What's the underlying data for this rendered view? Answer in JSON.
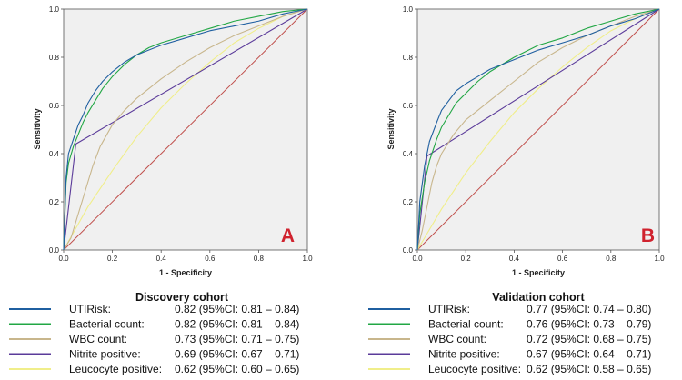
{
  "chart_data": [
    {
      "type": "line",
      "panel": "A",
      "title": "Discovery cohort",
      "xlabel": "1 - Specificity",
      "ylabel": "Sensitivity",
      "xlim": [
        0.0,
        1.0
      ],
      "ylim": [
        0.0,
        1.0
      ],
      "xticks": [
        "0.0",
        "0.2",
        "0.4",
        "0.6",
        "0.8",
        "1.0"
      ],
      "yticks": [
        "0.0",
        "0.2",
        "0.4",
        "0.6",
        "0.8",
        "1.0"
      ],
      "reference_line": {
        "name": "Reference line",
        "color": "#c0504d",
        "points": [
          [
            0,
            0
          ],
          [
            1,
            1
          ]
        ]
      },
      "series": [
        {
          "name": "UTIRisk:",
          "auc": "0.82 (95%CI: 0.81 – 0.84)",
          "color": "#1f5fa0",
          "points": [
            [
              0,
              0
            ],
            [
              0.01,
              0.3
            ],
            [
              0.02,
              0.4
            ],
            [
              0.04,
              0.46
            ],
            [
              0.06,
              0.52
            ],
            [
              0.08,
              0.56
            ],
            [
              0.1,
              0.61
            ],
            [
              0.13,
              0.66
            ],
            [
              0.16,
              0.7
            ],
            [
              0.2,
              0.74
            ],
            [
              0.25,
              0.78
            ],
            [
              0.3,
              0.81
            ],
            [
              0.35,
              0.83
            ],
            [
              0.4,
              0.85
            ],
            [
              0.5,
              0.88
            ],
            [
              0.6,
              0.91
            ],
            [
              0.7,
              0.93
            ],
            [
              0.8,
              0.95
            ],
            [
              0.9,
              0.98
            ],
            [
              1,
              1
            ]
          ]
        },
        {
          "name": "Bacterial count:",
          "auc": "0.82 (95%CI: 0.81 – 0.84)",
          "color": "#22a745",
          "points": [
            [
              0,
              0
            ],
            [
              0.01,
              0.28
            ],
            [
              0.02,
              0.36
            ],
            [
              0.04,
              0.43
            ],
            [
              0.06,
              0.48
            ],
            [
              0.08,
              0.53
            ],
            [
              0.1,
              0.57
            ],
            [
              0.13,
              0.62
            ],
            [
              0.16,
              0.67
            ],
            [
              0.2,
              0.72
            ],
            [
              0.25,
              0.77
            ],
            [
              0.3,
              0.81
            ],
            [
              0.35,
              0.84
            ],
            [
              0.4,
              0.86
            ],
            [
              0.5,
              0.89
            ],
            [
              0.6,
              0.92
            ],
            [
              0.7,
              0.95
            ],
            [
              0.8,
              0.97
            ],
            [
              0.9,
              0.99
            ],
            [
              1,
              1
            ]
          ]
        },
        {
          "name": "WBC count:",
          "auc": "0.73 (95%CI: 0.71 – 0.75)",
          "color": "#c8b68c",
          "points": [
            [
              0,
              0
            ],
            [
              0.03,
              0.05
            ],
            [
              0.06,
              0.15
            ],
            [
              0.09,
              0.25
            ],
            [
              0.12,
              0.35
            ],
            [
              0.15,
              0.43
            ],
            [
              0.2,
              0.52
            ],
            [
              0.25,
              0.58
            ],
            [
              0.3,
              0.63
            ],
            [
              0.4,
              0.71
            ],
            [
              0.5,
              0.78
            ],
            [
              0.6,
              0.84
            ],
            [
              0.7,
              0.89
            ],
            [
              0.8,
              0.93
            ],
            [
              0.9,
              0.97
            ],
            [
              1,
              1
            ]
          ]
        },
        {
          "name": "Nitrite positive:",
          "auc": "0.69 (95%CI: 0.67 – 0.71)",
          "color": "#5b3b9a",
          "points": [
            [
              0,
              0
            ],
            [
              0.05,
              0.44
            ],
            [
              1,
              1
            ]
          ]
        },
        {
          "name": "Leucocyte positive:",
          "auc": "0.62 (95%CI: 0.60 – 0.65)",
          "color": "#f0ee8a",
          "points": [
            [
              0,
              0
            ],
            [
              0.1,
              0.18
            ],
            [
              0.2,
              0.33
            ],
            [
              0.3,
              0.47
            ],
            [
              0.4,
              0.59
            ],
            [
              0.5,
              0.69
            ],
            [
              0.6,
              0.78
            ],
            [
              0.7,
              0.86
            ],
            [
              0.8,
              0.92
            ],
            [
              0.9,
              0.97
            ],
            [
              1,
              1
            ]
          ]
        }
      ]
    },
    {
      "type": "line",
      "panel": "B",
      "title": "Validation cohort",
      "xlabel": "1 - Specificity",
      "ylabel": "Sensitivity",
      "xlim": [
        0.0,
        1.0
      ],
      "ylim": [
        0.0,
        1.0
      ],
      "xticks": [
        "0.0",
        "0.2",
        "0.4",
        "0.6",
        "0.8",
        "1.0"
      ],
      "yticks": [
        "0.0",
        "0.2",
        "0.4",
        "0.6",
        "0.8",
        "1.0"
      ],
      "reference_line": {
        "name": "Reference line",
        "color": "#c0504d",
        "points": [
          [
            0,
            0
          ],
          [
            1,
            1
          ]
        ]
      },
      "series": [
        {
          "name": "UTIRisk:",
          "auc": "0.77 (95%CI: 0.74 – 0.80)",
          "color": "#1f5fa0",
          "points": [
            [
              0,
              0
            ],
            [
              0.01,
              0.2
            ],
            [
              0.03,
              0.35
            ],
            [
              0.05,
              0.45
            ],
            [
              0.08,
              0.53
            ],
            [
              0.1,
              0.58
            ],
            [
              0.13,
              0.62
            ],
            [
              0.16,
              0.66
            ],
            [
              0.2,
              0.69
            ],
            [
              0.25,
              0.72
            ],
            [
              0.3,
              0.75
            ],
            [
              0.4,
              0.79
            ],
            [
              0.5,
              0.83
            ],
            [
              0.6,
              0.86
            ],
            [
              0.7,
              0.89
            ],
            [
              0.8,
              0.93
            ],
            [
              0.9,
              0.96
            ],
            [
              1,
              1
            ]
          ]
        },
        {
          "name": "Bacterial count:",
          "auc": "0.76 (95%CI: 0.73 – 0.79)",
          "color": "#22a745",
          "points": [
            [
              0,
              0
            ],
            [
              0.01,
              0.15
            ],
            [
              0.03,
              0.28
            ],
            [
              0.05,
              0.37
            ],
            [
              0.08,
              0.46
            ],
            [
              0.1,
              0.51
            ],
            [
              0.13,
              0.56
            ],
            [
              0.16,
              0.61
            ],
            [
              0.2,
              0.65
            ],
            [
              0.25,
              0.7
            ],
            [
              0.3,
              0.74
            ],
            [
              0.4,
              0.8
            ],
            [
              0.5,
              0.85
            ],
            [
              0.6,
              0.88
            ],
            [
              0.7,
              0.92
            ],
            [
              0.8,
              0.95
            ],
            [
              0.9,
              0.98
            ],
            [
              1,
              1
            ]
          ]
        },
        {
          "name": "WBC count:",
          "auc": "0.72 (95%CI: 0.68 – 0.75)",
          "color": "#c8b68c",
          "points": [
            [
              0,
              0
            ],
            [
              0.02,
              0.08
            ],
            [
              0.04,
              0.18
            ],
            [
              0.06,
              0.28
            ],
            [
              0.08,
              0.35
            ],
            [
              0.1,
              0.4
            ],
            [
              0.15,
              0.48
            ],
            [
              0.2,
              0.54
            ],
            [
              0.25,
              0.58
            ],
            [
              0.3,
              0.62
            ],
            [
              0.4,
              0.7
            ],
            [
              0.5,
              0.78
            ],
            [
              0.6,
              0.84
            ],
            [
              0.7,
              0.89
            ],
            [
              0.8,
              0.93
            ],
            [
              0.9,
              0.97
            ],
            [
              1,
              1
            ]
          ]
        },
        {
          "name": "Nitrite positive:",
          "auc": "0.67 (95%CI: 0.64 – 0.71)",
          "color": "#5b3b9a",
          "points": [
            [
              0,
              0
            ],
            [
              0.04,
              0.39
            ],
            [
              1,
              1
            ]
          ]
        },
        {
          "name": "Leucocyte positive:",
          "auc": "0.62 (95%CI: 0.58 – 0.65)",
          "color": "#f0ee8a",
          "points": [
            [
              0,
              0
            ],
            [
              0.1,
              0.17
            ],
            [
              0.2,
              0.32
            ],
            [
              0.3,
              0.45
            ],
            [
              0.4,
              0.57
            ],
            [
              0.5,
              0.67
            ],
            [
              0.6,
              0.76
            ],
            [
              0.7,
              0.84
            ],
            [
              0.8,
              0.91
            ],
            [
              0.9,
              0.96
            ],
            [
              1,
              1
            ]
          ]
        }
      ]
    }
  ]
}
